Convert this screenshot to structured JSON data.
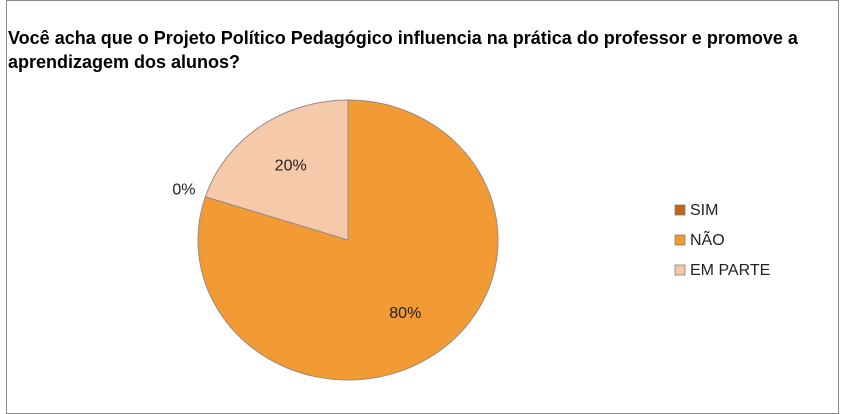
{
  "chart_data": {
    "type": "pie",
    "title": "Você acha que o Projeto Político Pedagógico influencia na prática do professor e promove a aprendizagem dos alunos?",
    "categories": [
      "SIM",
      "NÃO",
      "EM PARTE"
    ],
    "values": [
      0,
      80,
      20
    ],
    "value_labels": [
      "0%",
      "80%",
      "20%"
    ],
    "colors": [
      "#c0641e",
      "#f29a34",
      "#f6c9ab"
    ],
    "legend": "right"
  }
}
